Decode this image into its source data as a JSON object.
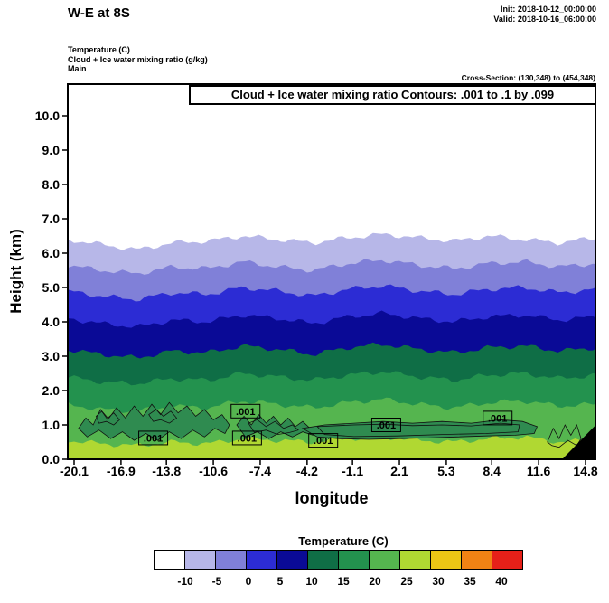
{
  "header": {
    "title": "W-E at 8S",
    "init": "Init: 2018-10-12_00:00:00",
    "valid": "Valid: 2018-10-16_06:00:00",
    "field_lines": [
      "Temperature (C)",
      "Cloud + Ice water mixing ratio (g/kg)",
      "Main"
    ],
    "cross_section": "Cross-Section: (130,348) to (454,348)"
  },
  "plot": {
    "contour_note": "Cloud + Ice water mixing ratio Contours: .001 to .1 by .099"
  },
  "chart_data": {
    "type": "heatmap",
    "title": "W-E at 8S",
    "xlabel": "longitude",
    "ylabel": "Height (km)",
    "shaded_field": "Temperature (C)",
    "contour_field": "Cloud + Ice water mixing ratio (g/kg)",
    "contour_levels": [
      0.001,
      0.1
    ],
    "xlim": [
      -20.1,
      14.8
    ],
    "ylim": [
      0,
      10.9
    ],
    "x_tick_values": [
      -20.1,
      -16.9,
      -13.8,
      -10.6,
      -7.4,
      -4.2,
      -1.1,
      2.1,
      5.3,
      8.4,
      11.6,
      14.8
    ],
    "y_tick_values": [
      0,
      1,
      2,
      3,
      4,
      5,
      6,
      7,
      8,
      9,
      10
    ],
    "sample_lons": [
      -20.6,
      -18.2,
      -15.8,
      -13.4,
      -11.0,
      -8.6,
      -6.2,
      -3.8,
      -1.4,
      1.0,
      3.4,
      5.8,
      8.2,
      10.6,
      13.0,
      15.5
    ],
    "isotherms": [
      {
        "temp_c": -10,
        "heights_km": [
          6.4,
          6.25,
          6.1,
          6.3,
          6.35,
          6.5,
          6.4,
          6.3,
          6.45,
          6.55,
          6.45,
          6.35,
          6.5,
          6.4,
          6.3,
          6.45
        ]
      },
      {
        "temp_c": -5,
        "heights_km": [
          5.65,
          5.5,
          5.4,
          5.6,
          5.55,
          5.75,
          5.6,
          5.5,
          5.7,
          5.8,
          5.65,
          5.55,
          5.7,
          5.75,
          5.6,
          5.7
        ]
      },
      {
        "temp_c": 0,
        "heights_km": [
          4.9,
          4.75,
          4.65,
          4.85,
          4.8,
          5.0,
          4.9,
          4.75,
          4.95,
          5.05,
          4.9,
          4.8,
          4.95,
          5.0,
          4.85,
          4.95
        ]
      },
      {
        "temp_c": 5,
        "heights_km": [
          4.1,
          3.95,
          3.85,
          4.05,
          4.0,
          4.2,
          4.1,
          3.95,
          4.15,
          4.25,
          4.1,
          4.0,
          4.15,
          4.2,
          4.05,
          4.15
        ]
      },
      {
        "temp_c": 10,
        "heights_km": [
          3.2,
          3.05,
          2.95,
          3.15,
          3.1,
          3.3,
          3.2,
          3.05,
          3.25,
          3.35,
          3.2,
          3.1,
          3.25,
          3.3,
          3.15,
          3.25
        ]
      },
      {
        "temp_c": 15,
        "heights_km": [
          2.4,
          2.25,
          2.2,
          2.35,
          2.3,
          2.5,
          2.4,
          2.3,
          2.45,
          2.55,
          2.4,
          2.3,
          2.45,
          2.5,
          2.35,
          2.45
        ]
      },
      {
        "temp_c": 20,
        "heights_km": [
          1.6,
          1.45,
          1.4,
          1.55,
          1.5,
          1.7,
          1.6,
          1.5,
          1.65,
          1.75,
          1.6,
          1.5,
          1.65,
          1.7,
          1.55,
          1.6
        ]
      },
      {
        "temp_c": 25,
        "heights_km": [
          0.55,
          0.45,
          0.4,
          0.5,
          0.45,
          0.6,
          0.55,
          0.5,
          0.6,
          0.65,
          0.55,
          0.5,
          0.6,
          0.65,
          0.5,
          0.55
        ]
      }
    ],
    "cloud_fill_color": "#2f8b50",
    "cloud_loops": [
      {
        "level": 0.001,
        "fill": true,
        "points": [
          [
            -19.8,
            0.9
          ],
          [
            -19.3,
            1.2
          ],
          [
            -18.8,
            1.0
          ],
          [
            -18.3,
            1.45
          ],
          [
            -17.8,
            1.15
          ],
          [
            -17.2,
            1.5
          ],
          [
            -16.6,
            1.2
          ],
          [
            -16.0,
            1.55
          ],
          [
            -15.4,
            1.25
          ],
          [
            -14.8,
            1.6
          ],
          [
            -14.2,
            1.3
          ],
          [
            -13.6,
            1.65
          ],
          [
            -13.0,
            1.35
          ],
          [
            -12.4,
            1.55
          ],
          [
            -11.8,
            1.25
          ],
          [
            -11.2,
            1.45
          ],
          [
            -10.6,
            1.15
          ],
          [
            -10.0,
            1.3
          ],
          [
            -9.5,
            1.0
          ],
          [
            -9.8,
            0.75
          ],
          [
            -10.5,
            0.9
          ],
          [
            -11.2,
            0.65
          ],
          [
            -12.0,
            0.85
          ],
          [
            -12.8,
            0.6
          ],
          [
            -13.6,
            0.8
          ],
          [
            -14.4,
            0.55
          ],
          [
            -15.2,
            0.75
          ],
          [
            -16.0,
            0.55
          ],
          [
            -16.8,
            0.8
          ],
          [
            -17.6,
            0.6
          ],
          [
            -18.4,
            0.85
          ],
          [
            -19.2,
            0.65
          ]
        ]
      },
      {
        "level": 0.1,
        "fill": false,
        "points": [
          [
            -18.6,
            1.25
          ],
          [
            -18.2,
            1.4
          ],
          [
            -17.8,
            1.2
          ],
          [
            -17.4,
            1.35
          ],
          [
            -17.0,
            1.15
          ],
          [
            -17.4,
            1.0
          ],
          [
            -17.9,
            1.1
          ],
          [
            -18.4,
            1.05
          ]
        ]
      },
      {
        "level": 0.1,
        "fill": false,
        "points": [
          [
            -15.0,
            1.3
          ],
          [
            -14.5,
            1.45
          ],
          [
            -14.0,
            1.25
          ],
          [
            -13.5,
            1.4
          ],
          [
            -13.1,
            1.2
          ],
          [
            -13.6,
            1.05
          ],
          [
            -14.2,
            1.15
          ],
          [
            -14.7,
            1.1
          ]
        ]
      },
      {
        "level": 0.001,
        "fill": true,
        "points": [
          [
            -9.0,
            1.0
          ],
          [
            -8.5,
            1.25
          ],
          [
            -8.0,
            1.0
          ],
          [
            -7.5,
            1.3
          ],
          [
            -7.0,
            1.05
          ],
          [
            -6.5,
            1.25
          ],
          [
            -6.0,
            1.0
          ],
          [
            -5.5,
            1.2
          ],
          [
            -5.0,
            0.95
          ],
          [
            -4.5,
            1.1
          ],
          [
            -4.0,
            0.9
          ],
          [
            -3.6,
            0.95
          ],
          [
            -3.8,
            0.7
          ],
          [
            -4.5,
            0.8
          ],
          [
            -5.2,
            0.65
          ],
          [
            -6.0,
            0.8
          ],
          [
            -6.8,
            0.6
          ],
          [
            -7.6,
            0.8
          ],
          [
            -8.4,
            0.65
          ]
        ]
      },
      {
        "level": 0.1,
        "fill": false,
        "points": [
          [
            -8.2,
            1.05
          ],
          [
            -7.6,
            1.15
          ],
          [
            -7.0,
            0.95
          ],
          [
            -6.4,
            1.1
          ],
          [
            -5.8,
            0.9
          ],
          [
            -5.2,
            1.0
          ],
          [
            -4.8,
            0.85
          ],
          [
            -5.4,
            0.78
          ],
          [
            -6.2,
            0.72
          ],
          [
            -7.0,
            0.85
          ],
          [
            -7.8,
            0.78
          ]
        ]
      },
      {
        "level": 0.001,
        "fill": true,
        "points": [
          [
            -4.5,
            0.9
          ],
          [
            -3.0,
            1.0
          ],
          [
            -1.0,
            1.05
          ],
          [
            1.0,
            1.1
          ],
          [
            3.0,
            1.05
          ],
          [
            5.0,
            1.1
          ],
          [
            7.0,
            1.05
          ],
          [
            9.0,
            1.15
          ],
          [
            10.5,
            1.1
          ],
          [
            11.5,
            0.95
          ],
          [
            11.3,
            0.75
          ],
          [
            10.0,
            0.7
          ],
          [
            8.0,
            0.68
          ],
          [
            6.0,
            0.65
          ],
          [
            4.0,
            0.62
          ],
          [
            2.0,
            0.6
          ],
          [
            0.0,
            0.58
          ],
          [
            -2.0,
            0.6
          ],
          [
            -3.5,
            0.65
          ]
        ]
      },
      {
        "level": 0.1,
        "fill": false,
        "points": [
          [
            -3.5,
            0.95
          ],
          [
            -1.0,
            1.0
          ],
          [
            1.0,
            1.02
          ],
          [
            3.0,
            0.98
          ],
          [
            5.0,
            1.0
          ],
          [
            7.0,
            0.97
          ],
          [
            9.0,
            1.05
          ],
          [
            10.3,
            1.0
          ],
          [
            10.2,
            0.8
          ],
          [
            8.0,
            0.75
          ],
          [
            5.0,
            0.72
          ],
          [
            2.0,
            0.68
          ],
          [
            -1.0,
            0.66
          ],
          [
            -3.0,
            0.72
          ]
        ]
      },
      {
        "level": 0.001,
        "fill": false,
        "points": [
          [
            12.2,
            0.5
          ],
          [
            12.6,
            0.9
          ],
          [
            13.0,
            0.6
          ],
          [
            13.4,
            1.0
          ],
          [
            13.8,
            0.7
          ],
          [
            14.2,
            1.0
          ],
          [
            14.5,
            0.6
          ],
          [
            14.2,
            0.4
          ],
          [
            13.6,
            0.55
          ],
          [
            13.0,
            0.35
          ],
          [
            12.5,
            0.4
          ]
        ]
      }
    ],
    "contour_labels": [
      {
        "text": ".001",
        "lon": -14.7,
        "km": 0.62
      },
      {
        "text": ".001",
        "lon": -8.4,
        "km": 1.4
      },
      {
        "text": ".001",
        "lon": -8.3,
        "km": 0.62
      },
      {
        "text": ".001",
        "lon": -3.1,
        "km": 0.55
      },
      {
        "text": ".001",
        "lon": 1.2,
        "km": 1.0
      },
      {
        "text": ".001",
        "lon": 8.8,
        "km": 1.2
      }
    ],
    "terrain_polygon": [
      [
        13.2,
        0
      ],
      [
        15.5,
        0
      ],
      [
        15.5,
        1.0
      ]
    ],
    "colorbar": {
      "title": "Temperature (C)",
      "tick_labels": [
        "-10",
        "-5",
        "0",
        "5",
        "10",
        "15",
        "20",
        "25",
        "30",
        "35",
        "40"
      ],
      "colors": [
        "#ffffff",
        "#b7b7e8",
        "#8080d8",
        "#2c2cd4",
        "#0a0a96",
        "#0f6e46",
        "#23924e",
        "#55b54f",
        "#b0d832",
        "#ecc515",
        "#f08214",
        "#e62019"
      ]
    }
  }
}
